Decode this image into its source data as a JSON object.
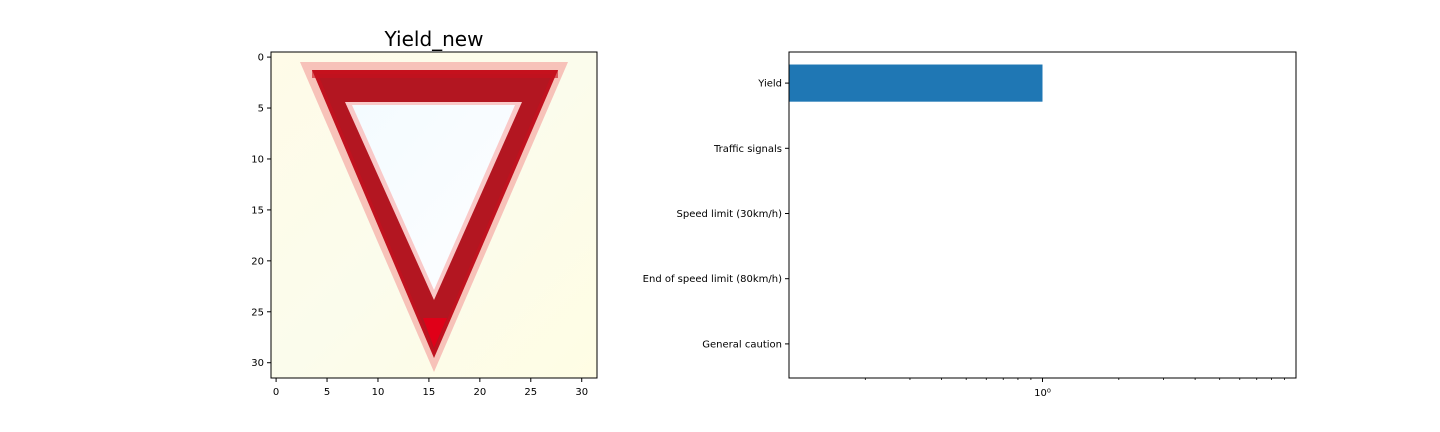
{
  "image_panel": {
    "title": "Yield_new",
    "x_ticks": [
      0,
      5,
      10,
      15,
      20,
      25,
      30
    ],
    "y_ticks": [
      0,
      5,
      10,
      15,
      20,
      25,
      30
    ],
    "x_range": [
      -0.5,
      31.5
    ],
    "y_range": [
      -0.5,
      31.5
    ],
    "content": "yield-sign-image"
  },
  "chart_data": {
    "type": "bar",
    "orientation": "horizontal",
    "x_scale": "log",
    "categories": [
      "Yield",
      "Traffic signals",
      "Speed limit (30km/h)",
      "End of speed limit (80km/h)",
      "General caution"
    ],
    "values": [
      1.0,
      0,
      0,
      0,
      0
    ],
    "x_tick_labels": [
      "10⁰"
    ],
    "x_ticks": [
      1
    ],
    "bar_color": "#1f77b4",
    "title": "",
    "xlabel": "",
    "ylabel": ""
  }
}
